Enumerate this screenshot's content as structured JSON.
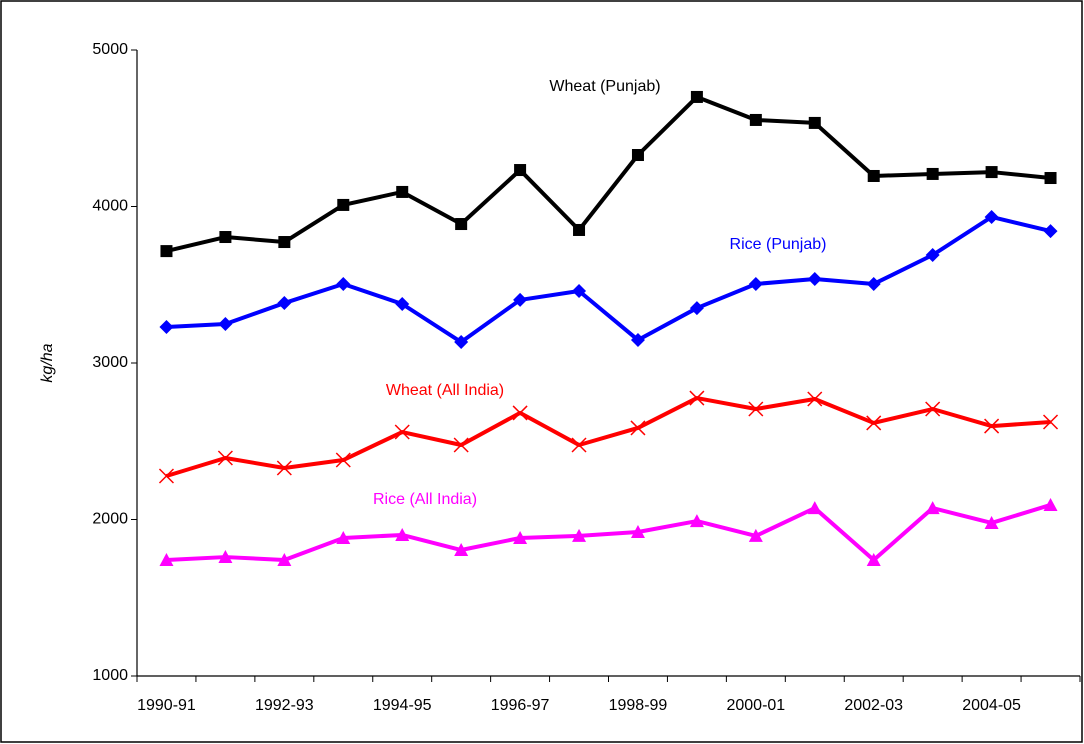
{
  "chart_data": {
    "type": "line",
    "y_label": "kg/ha",
    "categories": [
      "1990-91",
      null,
      "1992-93",
      null,
      "1994-95",
      null,
      "1996-97",
      null,
      "1998-99",
      null,
      "2000-01",
      null,
      "2002-03",
      null,
      "2004-05",
      null
    ],
    "series": [
      {
        "name": "Wheat (Punjab)",
        "color": "#000000",
        "marker": "square",
        "values": [
          3715,
          3805,
          3773,
          4010,
          4093,
          3888,
          4233,
          3850,
          4329,
          4700,
          4553,
          4534,
          4195,
          4208,
          4220,
          4182
        ]
      },
      {
        "name": "Rice (Punjab)",
        "color": "#0000ff",
        "marker": "diamond",
        "values": [
          3230,
          3249,
          3383,
          3505,
          3377,
          3134,
          3403,
          3460,
          3147,
          3351,
          3505,
          3537,
          3505,
          3690,
          3933,
          3843
        ]
      },
      {
        "name": "Wheat (All India)",
        "color": "#ff0000",
        "marker": "x",
        "values": [
          2278,
          2393,
          2329,
          2380,
          2559,
          2476,
          2681,
          2476,
          2585,
          2776,
          2706,
          2770,
          2617,
          2706,
          2597,
          2623
        ]
      },
      {
        "name": "Rice (All India)",
        "color": "#ff00ff",
        "marker": "triangle",
        "values": [
          1741,
          1760,
          1741,
          1882,
          1901,
          1805,
          1882,
          1895,
          1920,
          1990,
          1895,
          2073,
          1741,
          2073,
          1978,
          2093
        ]
      }
    ],
    "ylim": [
      1000,
      5000
    ],
    "yticks": [
      1000,
      2000,
      3000,
      4000,
      5000
    ],
    "grid": false
  }
}
